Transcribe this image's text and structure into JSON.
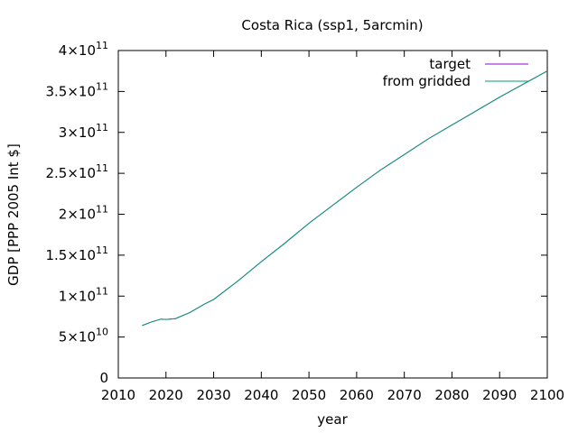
{
  "chart_data": {
    "type": "line",
    "title": "Costa Rica (ssp1, 5arcmin)",
    "xlabel": "year",
    "ylabel": "GDP [PPP 2005 Int $]",
    "xlim": [
      2010,
      2100
    ],
    "ylim": [
      0,
      400000000000
    ],
    "x_ticks": [
      2010,
      2020,
      2030,
      2040,
      2050,
      2060,
      2070,
      2080,
      2090,
      2100
    ],
    "x_tick_labels": [
      "2010",
      "2020",
      "2030",
      "2040",
      "2050",
      "2060",
      "2070",
      "2080",
      "2090",
      "2100"
    ],
    "y_ticks": [
      {
        "value": 0,
        "mant": "0",
        "exp": ""
      },
      {
        "value": 50000000000,
        "mant": "5×10",
        "exp": "10"
      },
      {
        "value": 100000000000,
        "mant": "1×10",
        "exp": "11"
      },
      {
        "value": 150000000000,
        "mant": "1.5×10",
        "exp": "11"
      },
      {
        "value": 200000000000,
        "mant": "2×10",
        "exp": "11"
      },
      {
        "value": 250000000000,
        "mant": "2.5×10",
        "exp": "11"
      },
      {
        "value": 300000000000,
        "mant": "3×10",
        "exp": "11"
      },
      {
        "value": 350000000000,
        "mant": "3.5×10",
        "exp": "11"
      },
      {
        "value": 400000000000,
        "mant": "4×10",
        "exp": "11"
      }
    ],
    "grid": false,
    "legend_position": "top-right",
    "series": [
      {
        "name": "target",
        "color": "#9400d3",
        "x": [
          2015,
          2017,
          2019,
          2020,
          2022,
          2025,
          2028,
          2030,
          2035,
          2040,
          2045,
          2050,
          2055,
          2060,
          2065,
          2070,
          2075,
          2080,
          2085,
          2090,
          2095,
          2100
        ],
        "y": [
          64000000000,
          68500000000,
          72000000000,
          71500000000,
          72500000000,
          80000000000,
          90000000000,
          96000000000,
          118000000000,
          142000000000,
          165000000000,
          189000000000,
          211000000000,
          233000000000,
          254000000000,
          273000000000,
          292000000000,
          309000000000,
          326000000000,
          343000000000,
          359000000000,
          375000000000
        ]
      },
      {
        "name": "from gridded",
        "color": "#009e73",
        "x": [
          2015,
          2017,
          2019,
          2020,
          2022,
          2025,
          2028,
          2030,
          2035,
          2040,
          2045,
          2050,
          2055,
          2060,
          2065,
          2070,
          2075,
          2080,
          2085,
          2090,
          2095,
          2100
        ],
        "y": [
          64000000000,
          68500000000,
          72000000000,
          71500000000,
          72500000000,
          80000000000,
          90000000000,
          96000000000,
          118000000000,
          142000000000,
          165000000000,
          189000000000,
          211000000000,
          233000000000,
          254000000000,
          273000000000,
          292000000000,
          309000000000,
          326000000000,
          343000000000,
          359000000000,
          375000000000
        ]
      }
    ]
  }
}
